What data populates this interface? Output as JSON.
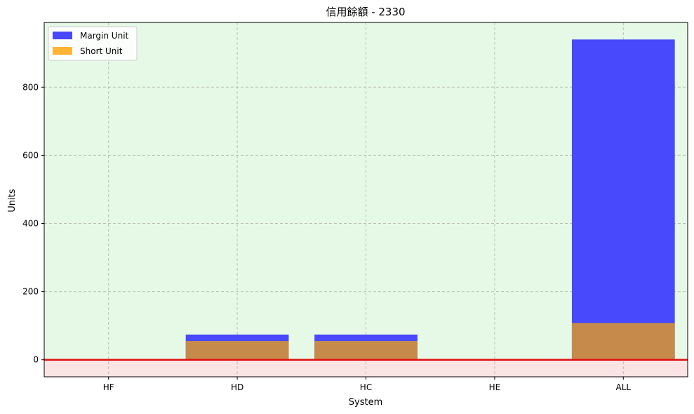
{
  "chart_data": {
    "type": "bar",
    "title": "信用餘額 - 2330",
    "xlabel": "System",
    "ylabel": "Units",
    "categories": [
      "HF",
      "HD",
      "HC",
      "HE",
      "ALL"
    ],
    "series": [
      {
        "name": "Margin Unit",
        "values": [
          0,
          74,
          74,
          0,
          940
        ],
        "color": "#4848fc"
      },
      {
        "name": "Short Unit",
        "values": [
          0,
          55,
          55,
          0,
          108
        ],
        "color": "#ffb533"
      }
    ],
    "overlap_color": "#c68a4a",
    "yticks": [
      0,
      200,
      400,
      600,
      800
    ],
    "ylim": [
      -50,
      990
    ],
    "grid": true,
    "legend_position": "top-left",
    "positive_region_color": "#e6f9e6",
    "negative_region_color": "#fbe4e3",
    "zero_line_color": "#e01010"
  }
}
